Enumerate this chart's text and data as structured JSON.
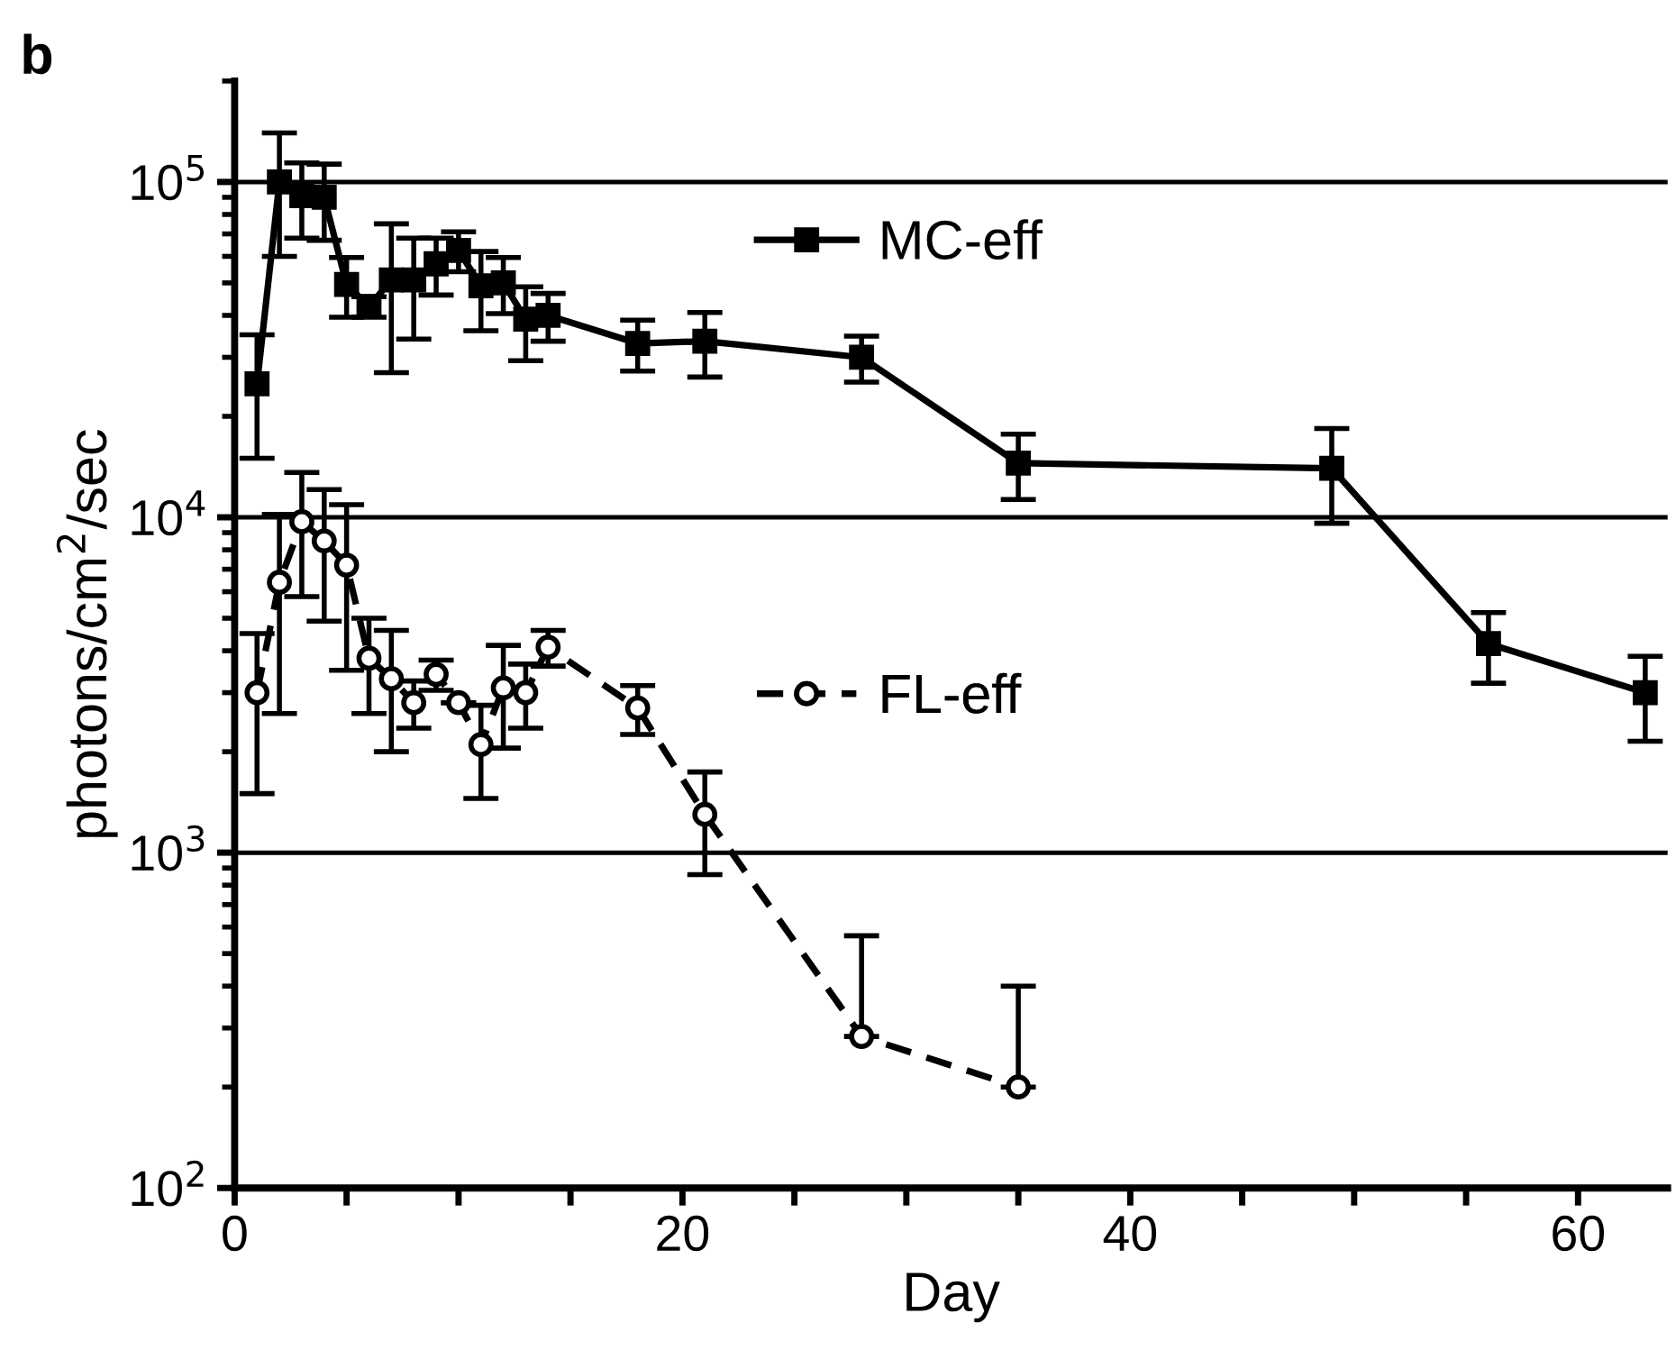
{
  "chart_data": {
    "type": "line",
    "xlabel": "Day",
    "ylabel": "photons/cm$^{2}$/sec",
    "annotations": [
      "b"
    ],
    "log": "y",
    "grid": "y",
    "legend": "top",
    "xlim": [
      0,
      64
    ],
    "xticks": [
      0,
      {
        "value": 5,
        "label": null
      },
      {
        "value": 10,
        "label": null
      },
      {
        "value": 15,
        "label": null
      },
      20,
      {
        "value": 25,
        "label": null
      },
      {
        "value": 30,
        "label": null
      },
      {
        "value": 35,
        "label": null
      },
      40,
      {
        "value": 45,
        "label": null
      },
      {
        "value": 50,
        "label": null
      },
      {
        "value": 55,
        "label": null
      },
      60
    ],
    "ylim": [
      100,
      200000
    ],
    "yticks": [
      {
        "value": 100,
        "label": "10$^{2}$"
      },
      {
        "value": 1000,
        "label": "10$^{3}$"
      },
      {
        "value": 10000,
        "label": "10$^{4}$"
      },
      {
        "value": 100000,
        "label": "10$^{5}$"
      }
    ],
    "series": [
      {
        "name": "MC-eff",
        "color": "#000000",
        "marker": "square",
        "line_style": "solid",
        "x": [
          1,
          2,
          3,
          4,
          5,
          6,
          7,
          8,
          9,
          10,
          11,
          12,
          13,
          14,
          18,
          21,
          28,
          35,
          49,
          56,
          63
        ],
        "values": [
          25000,
          100000,
          91000,
          90000,
          49500,
          42500,
          51000,
          51000,
          57000,
          62500,
          49000,
          50000,
          39000,
          40000,
          33000,
          33500,
          30000,
          14500,
          14000,
          4200,
          3000
        ],
        "errors": [
          10000,
          40000,
          23000,
          23000,
          10000,
          3000,
          24000,
          17000,
          11000,
          8500,
          13000,
          9500,
          9700,
          6500,
          5700,
          7300,
          4700,
          3200,
          4400,
          1000,
          850
        ]
      },
      {
        "name": "FL-eff",
        "color": "#000000",
        "marker": "circle",
        "line_style": "dashed",
        "x": [
          1,
          2,
          3,
          4,
          5,
          6,
          7,
          8,
          9,
          10,
          11,
          12,
          13,
          14,
          18,
          21,
          28,
          35
        ],
        "values": [
          3000,
          6400,
          9700,
          8500,
          7200,
          3800,
          3300,
          2800,
          3400,
          2800,
          2100,
          3100,
          3000,
          4100,
          2700,
          1300,
          283,
          200
        ],
        "errors": [
          1500,
          3800,
          3900,
          3600,
          3700,
          1200,
          1300,
          450,
          350,
          null,
          650,
          1050,
          650,
          500,
          450,
          440,
          [
            283,
            565
          ],
          [
            200,
            400
          ]
        ]
      }
    ]
  }
}
